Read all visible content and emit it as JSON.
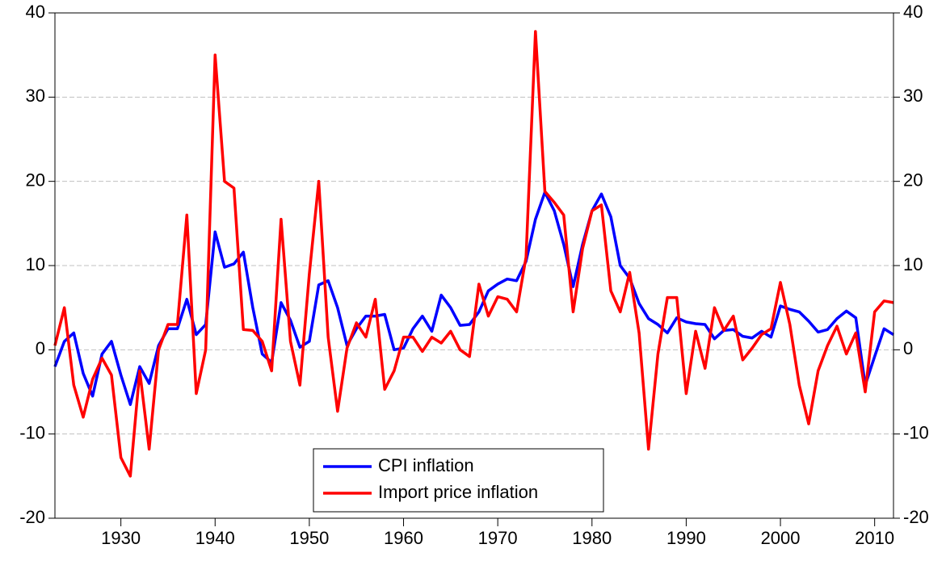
{
  "chart_data": {
    "type": "line",
    "x": [
      1923,
      1924,
      1925,
      1926,
      1927,
      1928,
      1929,
      1930,
      1931,
      1932,
      1933,
      1934,
      1935,
      1936,
      1937,
      1938,
      1939,
      1940,
      1941,
      1942,
      1943,
      1944,
      1945,
      1946,
      1947,
      1948,
      1949,
      1950,
      1951,
      1952,
      1953,
      1954,
      1955,
      1956,
      1957,
      1958,
      1959,
      1960,
      1961,
      1962,
      1963,
      1964,
      1965,
      1966,
      1967,
      1968,
      1969,
      1970,
      1971,
      1972,
      1973,
      1974,
      1975,
      1976,
      1977,
      1978,
      1979,
      1980,
      1981,
      1982,
      1983,
      1984,
      1985,
      1986,
      1987,
      1988,
      1989,
      1990,
      1991,
      1992,
      1993,
      1994,
      1995,
      1996,
      1997,
      1998,
      1999,
      2000,
      2001,
      2002,
      2003,
      2004,
      2005,
      2006,
      2007,
      2008,
      2009,
      2010,
      2011,
      2012
    ],
    "series": [
      {
        "name": "CPI inflation",
        "color": "#0000ff",
        "values": [
          -2,
          1,
          2,
          -2.8,
          -5.5,
          -0.5,
          1,
          -3,
          -6.5,
          -2,
          -4,
          0.5,
          2.5,
          2.5,
          6,
          1.8,
          3,
          14,
          9.8,
          10.2,
          11.6,
          5,
          -0.5,
          -1.5,
          5.6,
          3.5,
          0.3,
          1,
          7.7,
          8.2,
          5,
          0.5,
          2.5,
          4,
          4,
          4.2,
          0,
          0.2,
          2.5,
          4,
          2.2,
          6.5,
          5,
          2.9,
          3,
          4.5,
          7,
          7.8,
          8.4,
          8.2,
          10.5,
          15.5,
          18.7,
          16.5,
          12.5,
          7.5,
          12.5,
          16.5,
          18.5,
          15.8,
          10,
          8.5,
          5.5,
          3.7,
          3,
          2,
          3.8,
          3.3,
          3.1,
          3,
          1.3,
          2.3,
          2.4,
          1.6,
          1.4,
          2.2,
          1.5,
          5.2,
          4.8,
          4.5,
          3.4,
          2.1,
          2.4,
          3.7,
          4.6,
          3.8,
          -4.2,
          -0.8,
          2.5,
          1.8
        ]
      },
      {
        "name": "Import price inflation",
        "color": "#ff0000",
        "values": [
          0.5,
          5,
          -4.2,
          -8,
          -3.5,
          -1,
          -3,
          -12.8,
          -15,
          -2.5,
          -11.8,
          0,
          3,
          3,
          16,
          -5.2,
          0,
          35,
          20,
          19.2,
          2.4,
          2.3,
          1,
          -2.5,
          15.5,
          1,
          -4.2,
          9,
          20,
          1.5,
          -7.3,
          0.2,
          3.2,
          1.5,
          6,
          -4.7,
          -2.5,
          1.5,
          1.5,
          -0.2,
          1.5,
          0.8,
          2.2,
          0,
          -0.8,
          7.8,
          4,
          6.3,
          6,
          4.5,
          11,
          37.8,
          18.8,
          17.5,
          16,
          4.5,
          12,
          16.5,
          17.2,
          7,
          4.5,
          9.2,
          2,
          -11.8,
          -0.5,
          6.2,
          6.2,
          -5.2,
          2.2,
          -2.2,
          5,
          2.3,
          4,
          -1.2,
          0.2,
          1.8,
          2.5,
          8,
          3,
          -4.2,
          -8.8,
          -2.5,
          0.5,
          2.8,
          -0.5,
          2,
          -5,
          4.5,
          5.8,
          5.6
        ]
      }
    ],
    "xlim": [
      1923,
      2012
    ],
    "xticks": [
      1930,
      1940,
      1950,
      1960,
      1970,
      1980,
      1990,
      2000,
      2010
    ],
    "ylim": [
      -20,
      40
    ],
    "yticks": [
      -20,
      -10,
      0,
      10,
      20,
      30,
      40
    ],
    "y2lim": [
      -20,
      40
    ],
    "y2ticks": [
      -20,
      -10,
      0,
      10,
      20,
      30,
      40
    ],
    "grid": true,
    "legend": "bottom-center"
  }
}
